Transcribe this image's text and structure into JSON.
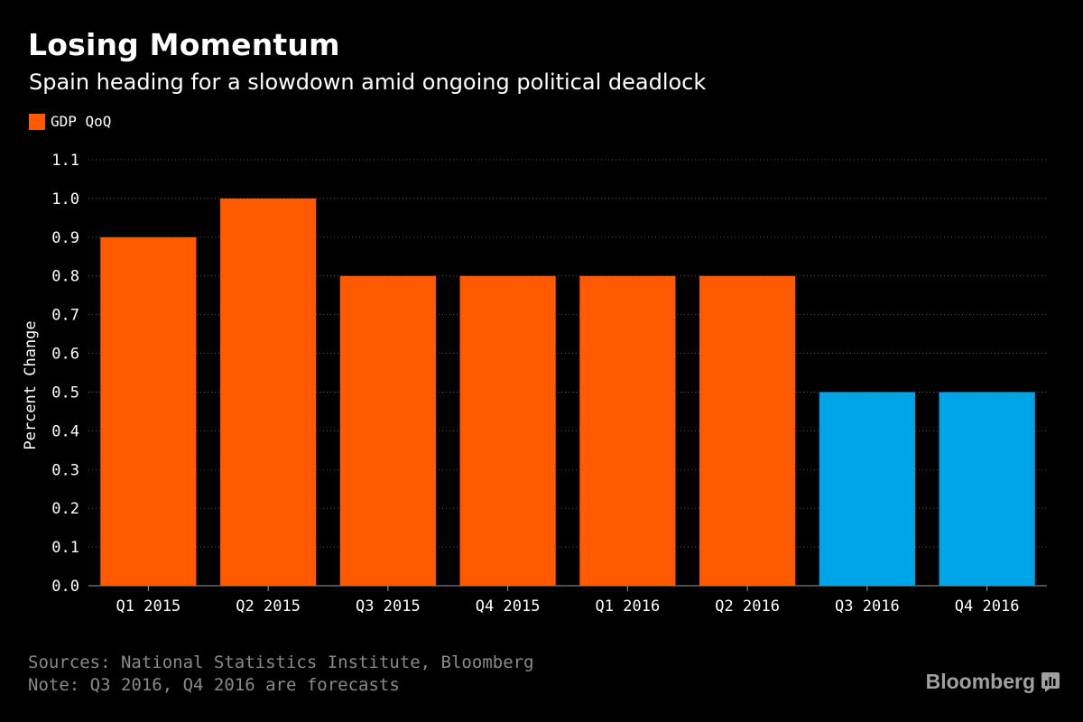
{
  "header": {
    "title": "Losing Momentum",
    "subtitle": "Spain heading for a slowdown amid ongoing political deadlock"
  },
  "legend": {
    "label": "GDP QoQ"
  },
  "footer": {
    "sources": "Sources: National Statistics Institute, Bloomberg",
    "note": "Note: Q3 2016, Q4 2016 are forecasts"
  },
  "brand": {
    "name": "Bloomberg",
    "icon": "bloomberg-logo-icon"
  },
  "colors": {
    "actual": "#ff5a00",
    "forecast": "#00a5e8",
    "grid": "#555555",
    "axis_text": "#ffffff",
    "footer_text": "#8a8a8a"
  },
  "chart_data": {
    "type": "bar",
    "categories": [
      "Q1 2015",
      "Q2 2015",
      "Q3 2015",
      "Q4 2015",
      "Q1 2016",
      "Q2 2016",
      "Q3 2016",
      "Q4 2016"
    ],
    "series": [
      {
        "name": "GDP QoQ",
        "values": [
          0.9,
          1.0,
          0.8,
          0.8,
          0.8,
          0.8,
          0.5,
          0.5
        ]
      }
    ],
    "forecast_flags": [
      false,
      false,
      false,
      false,
      false,
      false,
      true,
      true
    ],
    "ylabel": "Percent Change",
    "xlabel": "",
    "ylim": [
      0,
      1.1
    ],
    "yticks": [
      "0.0",
      "0.1",
      "0.2",
      "0.3",
      "0.4",
      "0.5",
      "0.6",
      "0.7",
      "0.8",
      "0.9",
      "1.0",
      "1.1"
    ],
    "grid": true,
    "legend_position": "top-left"
  }
}
